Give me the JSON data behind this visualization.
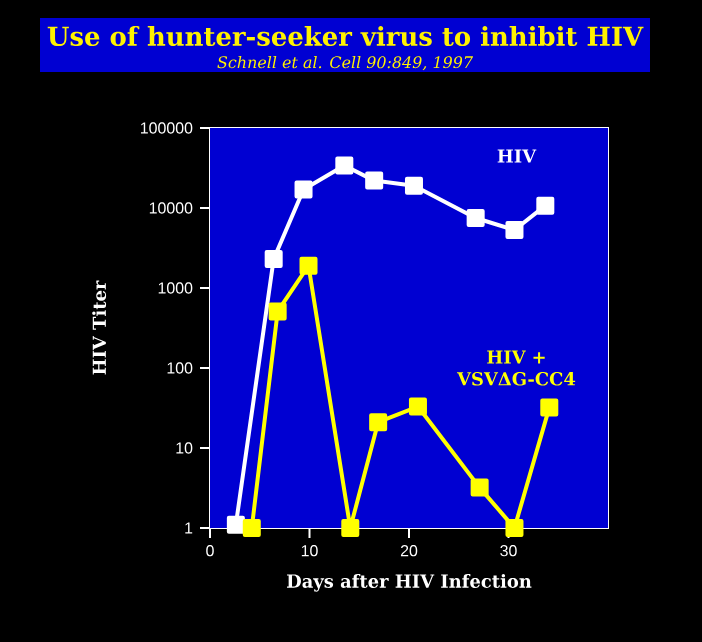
{
  "chart_data": {
    "type": "line",
    "title": "Use of hunter-seeker virus to inhibit HIV",
    "subtitle": "Schnell et al. Cell 90:849, 1997",
    "xlabel": "Days after HIV Infection",
    "ylabel": "HIV Titer",
    "log": "y",
    "xlim": [
      0,
      40
    ],
    "ylim": [
      1,
      100000
    ],
    "xticks": [
      0,
      10,
      20,
      30
    ],
    "yticks": [
      1,
      10,
      100,
      1000,
      10000,
      100000
    ],
    "marker": "square",
    "line_style": "solid",
    "legend": false,
    "series": [
      {
        "name": "HIV",
        "color": "#ffffff",
        "x": [
          2.6,
          6.4,
          9.4,
          13.5,
          16.5,
          20.5,
          26.7,
          30.6,
          33.7
        ],
        "values": [
          1.1,
          2300,
          17000,
          34000,
          22000,
          19000,
          7500,
          5300,
          10700
        ]
      },
      {
        "name": "HIV + VSVΔG-CC4",
        "color": "#ffff00",
        "x": [
          4.2,
          6.8,
          9.9,
          14.1,
          16.9,
          20.9,
          27.1,
          30.6,
          34.1
        ],
        "values": [
          1,
          510,
          1900,
          1,
          21,
          33,
          3.2,
          1,
          32
        ]
      }
    ]
  }
}
